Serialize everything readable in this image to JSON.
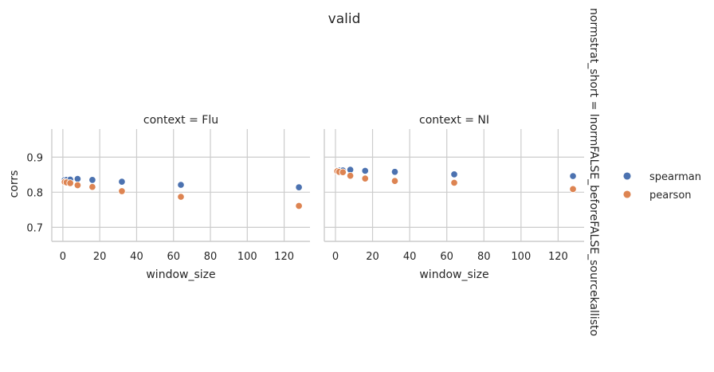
{
  "chart_data": {
    "type": "scatter",
    "suptitle": "valid",
    "row_title": "normstrat_short = lnormFALSE_beforeFALSE_sourcekallisto",
    "xlabel": "window_size",
    "ylabel": "corrs",
    "xlim": [
      -6,
      134
    ],
    "ylim": [
      0.66,
      0.98
    ],
    "xticks": [
      0,
      20,
      40,
      60,
      80,
      100,
      120
    ],
    "yticks": [
      0.7,
      0.8,
      0.9
    ],
    "xtick_labels": [
      "0",
      "20",
      "40",
      "60",
      "80",
      "100",
      "120"
    ],
    "ytick_labels": [
      "0.7",
      "0.8",
      "0.9"
    ],
    "grid": true,
    "legend": [
      {
        "name": "spearman",
        "color": "#4c72b0"
      },
      {
        "name": "pearson",
        "color": "#dd8452"
      }
    ],
    "legend_position": "right",
    "panels": [
      {
        "title": "context = Flu",
        "series": [
          {
            "name": "spearman",
            "x": [
              1,
              2,
              4,
              8,
              16,
              32,
              64,
              128
            ],
            "y": [
              0.835,
              0.835,
              0.836,
              0.838,
              0.835,
              0.83,
              0.821,
              0.814
            ]
          },
          {
            "name": "pearson",
            "x": [
              1,
              2,
              4,
              8,
              16,
              32,
              64,
              128
            ],
            "y": [
              0.829,
              0.828,
              0.826,
              0.82,
              0.815,
              0.803,
              0.787,
              0.761
            ]
          }
        ]
      },
      {
        "title": "context = NI",
        "series": [
          {
            "name": "spearman",
            "x": [
              1,
              2,
              4,
              8,
              16,
              32,
              64,
              128
            ],
            "y": [
              0.862,
              0.862,
              0.862,
              0.864,
              0.861,
              0.858,
              0.851,
              0.846
            ]
          },
          {
            "name": "pearson",
            "x": [
              1,
              2,
              4,
              8,
              16,
              32,
              64,
              128
            ],
            "y": [
              0.86,
              0.858,
              0.857,
              0.847,
              0.839,
              0.832,
              0.827,
              0.809
            ]
          }
        ]
      }
    ]
  }
}
